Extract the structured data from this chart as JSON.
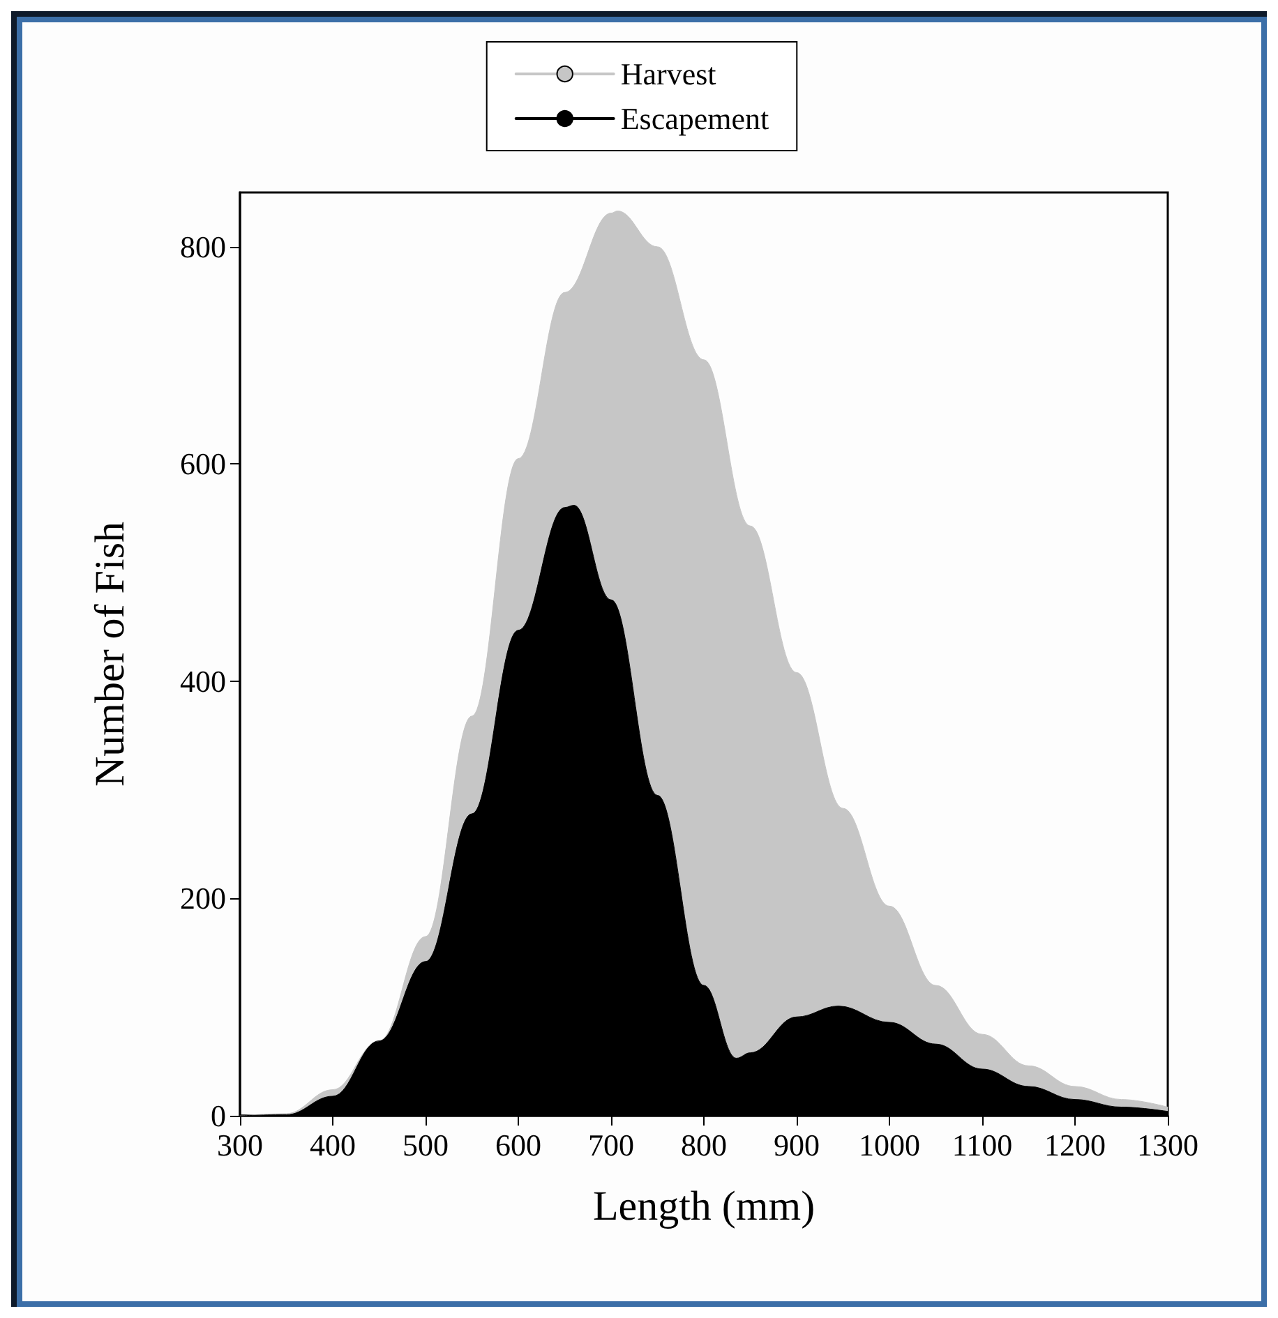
{
  "chart_data": {
    "type": "area",
    "xlabel": "Length (mm)",
    "ylabel": "Number of Fish",
    "xlim": [
      300,
      1300
    ],
    "xticks": [
      300,
      400,
      500,
      600,
      700,
      800,
      900,
      1000,
      1100,
      1200,
      1300
    ],
    "ylim": [
      0,
      850
    ],
    "yticks": [
      0,
      200,
      400,
      600,
      800
    ],
    "grid": false,
    "legend": "top",
    "line_style": "solid",
    "marker": "none",
    "series": [
      {
        "name": "Harvest",
        "color": "#c6c6c6",
        "x": [
          300,
          350,
          400,
          450,
          500,
          550,
          600,
          650,
          700,
          707,
          750,
          800,
          850,
          900,
          950,
          1000,
          1050,
          1100,
          1150,
          1200,
          1250,
          1300
        ],
        "values": [
          0,
          2,
          24,
          69,
          165,
          368,
          605,
          758,
          831,
          833,
          800,
          696,
          543,
          408,
          283,
          193,
          120,
          75,
          46,
          27,
          15,
          8
        ]
      },
      {
        "name": "Escapement",
        "color": "#000000",
        "x": [
          300,
          350,
          400,
          450,
          500,
          550,
          600,
          650,
          660,
          700,
          750,
          800,
          835,
          850,
          900,
          945,
          1000,
          1050,
          1100,
          1150,
          1200,
          1250,
          1300
        ],
        "values": [
          0,
          1,
          18,
          69,
          142,
          278,
          447,
          560,
          562,
          475,
          295,
          120,
          53,
          58,
          91,
          101,
          86,
          66,
          43,
          27,
          15,
          8,
          4
        ]
      }
    ]
  }
}
